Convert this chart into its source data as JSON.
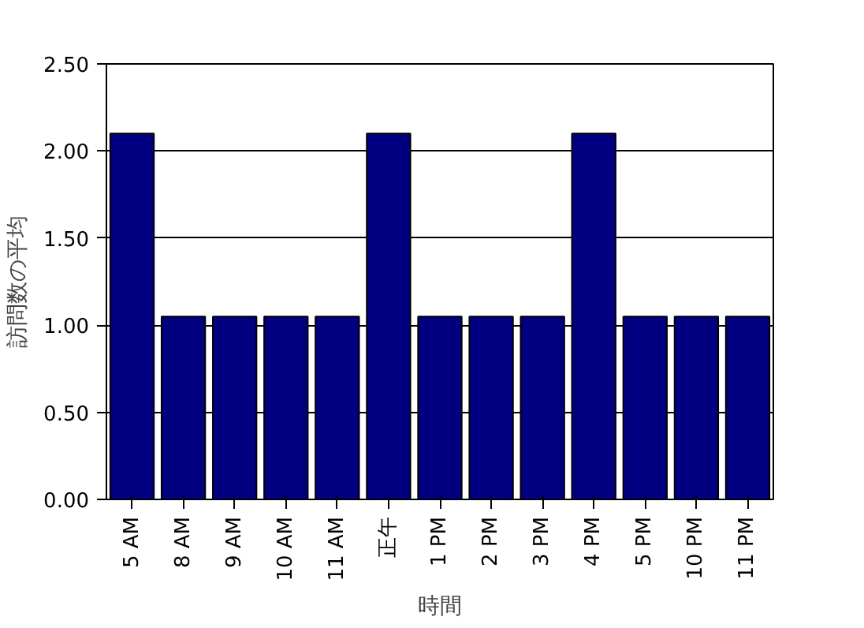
{
  "chart_data": {
    "type": "bar",
    "xlabel": "時間",
    "ylabel": "訪問数の平均",
    "categories": [
      "5 AM",
      "8 AM",
      "9 AM",
      "10 AM",
      "11 AM",
      "正午",
      "1 PM",
      "2 PM",
      "3 PM",
      "4 PM",
      "5 PM",
      "10 PM",
      "11 PM"
    ],
    "values": [
      2.1,
      1.05,
      1.05,
      1.05,
      1.05,
      2.1,
      1.05,
      1.05,
      1.05,
      2.1,
      1.05,
      1.05,
      1.05
    ],
    "color": "#000080",
    "ylim": [
      0,
      2.5
    ],
    "yticks": [
      {
        "value": 0,
        "label": "0.00"
      },
      {
        "value": 0.5,
        "label": "0.50"
      },
      {
        "value": 1,
        "label": "1.00"
      },
      {
        "value": 1.5,
        "label": "1.50"
      },
      {
        "value": 2,
        "label": "2.00"
      },
      {
        "value": 2.5,
        "label": "2.50"
      }
    ],
    "grid": "y"
  }
}
